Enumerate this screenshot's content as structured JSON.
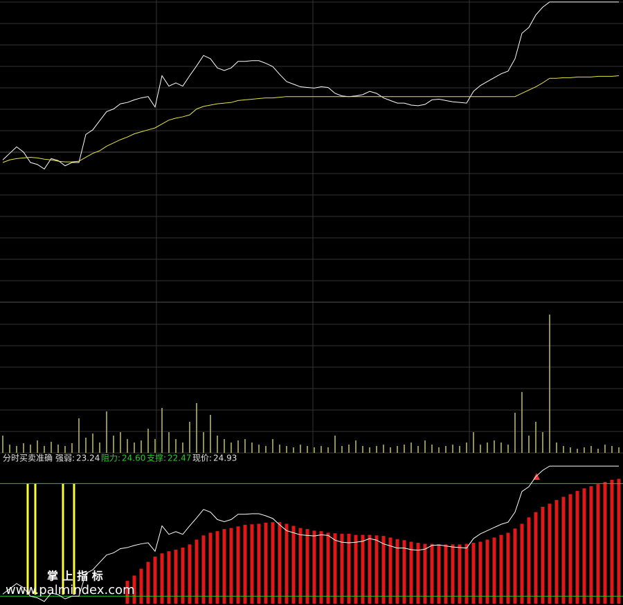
{
  "chart_data": [
    {
      "type": "line",
      "ylim": [
        20.33,
        24.96
      ],
      "series": [
        {
          "color": "#ffffff",
          "values": [
            22.51,
            22.61,
            22.71,
            22.63,
            22.47,
            22.44,
            22.37,
            22.53,
            22.5,
            22.42,
            22.47,
            22.47,
            22.9,
            22.97,
            23.11,
            23.25,
            23.29,
            23.37,
            23.39,
            23.43,
            23.46,
            23.48,
            23.32,
            23.8,
            23.64,
            23.69,
            23.64,
            23.8,
            23.95,
            24.11,
            24.06,
            23.92,
            23.88,
            23.92,
            24.02,
            24.02,
            24.03,
            24.03,
            23.99,
            23.94,
            23.82,
            23.71,
            23.67,
            23.63,
            23.62,
            23.61,
            23.63,
            23.62,
            23.53,
            23.49,
            23.48,
            23.49,
            23.51,
            23.56,
            23.53,
            23.46,
            23.42,
            23.38,
            23.38,
            23.35,
            23.34,
            23.36,
            23.43,
            23.44,
            23.42,
            23.4,
            23.39,
            23.38,
            23.56,
            23.65,
            23.71,
            23.77,
            23.83,
            23.87,
            24.06,
            24.45,
            24.54,
            24.73,
            24.85,
            24.93,
            24.93,
            24.93,
            24.93,
            24.93,
            24.93,
            24.93,
            24.93,
            24.93,
            24.93,
            24.93
          ]
        },
        {
          "color": "#e8e840",
          "values": [
            22.47,
            22.51,
            22.53,
            22.54,
            22.55,
            22.54,
            22.52,
            22.51,
            22.49,
            22.48,
            22.48,
            22.49,
            22.55,
            22.61,
            22.65,
            22.72,
            22.77,
            22.82,
            22.86,
            22.91,
            22.94,
            22.97,
            23.0,
            23.06,
            23.12,
            23.15,
            23.17,
            23.2,
            23.29,
            23.33,
            23.35,
            23.37,
            23.38,
            23.39,
            23.42,
            23.43,
            23.44,
            23.45,
            23.46,
            23.46,
            23.47,
            23.48,
            23.48,
            23.48,
            23.48,
            23.48,
            23.48,
            23.48,
            23.48,
            23.48,
            23.48,
            23.48,
            23.48,
            23.48,
            23.48,
            23.48,
            23.48,
            23.48,
            23.48,
            23.48,
            23.48,
            23.48,
            23.48,
            23.48,
            23.48,
            23.48,
            23.48,
            23.48,
            23.48,
            23.48,
            23.48,
            23.48,
            23.48,
            23.48,
            23.48,
            23.53,
            23.58,
            23.63,
            23.69,
            23.76,
            23.76,
            23.77,
            23.77,
            23.78,
            23.78,
            23.78,
            23.79,
            23.79,
            23.79,
            23.8
          ]
        }
      ]
    },
    {
      "type": "bar",
      "ylim": [
        0,
        215
      ],
      "color": "#c8c83c",
      "values": [
        25,
        12,
        10,
        14,
        12,
        18,
        10,
        16,
        12,
        10,
        14,
        50,
        22,
        28,
        15,
        60,
        25,
        30,
        20,
        15,
        18,
        35,
        20,
        65,
        30,
        20,
        15,
        45,
        72,
        30,
        55,
        25,
        20,
        15,
        18,
        20,
        15,
        12,
        10,
        20,
        12,
        10,
        8,
        12,
        10,
        8,
        10,
        8,
        25,
        10,
        12,
        18,
        10,
        8,
        10,
        12,
        8,
        10,
        12,
        15,
        10,
        18,
        12,
        8,
        10,
        12,
        10,
        15,
        30,
        12,
        15,
        18,
        15,
        12,
        58,
        88,
        25,
        45,
        30,
        200,
        15,
        10,
        8,
        6,
        8,
        10,
        6,
        12,
        10,
        8
      ]
    },
    {
      "type": "bar",
      "title": "分时买卖准确",
      "ylim": [
        22.33,
        25.01
      ],
      "color": "#e01818",
      "indicators": {
        "names": [
          "强弱:",
          "阻力:",
          "支撑:",
          "现价:"
        ],
        "values": [
          23.24,
          24.6,
          22.47,
          24.93
        ],
        "value_labels": [
          "23.24",
          "24.60",
          "22.47",
          "24.93"
        ],
        "colors": [
          "#e0e0e0",
          "#20d020",
          "#20d020",
          "#e0e0e0"
        ]
      },
      "values": [
        null,
        null,
        null,
        null,
        null,
        null,
        null,
        null,
        null,
        null,
        null,
        null,
        null,
        null,
        null,
        null,
        null,
        null,
        22.76,
        22.86,
        22.99,
        23.12,
        23.22,
        23.28,
        23.32,
        23.35,
        23.39,
        23.45,
        23.54,
        23.62,
        23.67,
        23.7,
        23.74,
        23.76,
        23.79,
        23.82,
        23.83,
        23.84,
        23.86,
        23.87,
        23.87,
        23.84,
        23.8,
        23.76,
        23.74,
        23.71,
        23.7,
        23.67,
        23.66,
        23.65,
        23.65,
        23.63,
        23.63,
        23.63,
        23.62,
        23.61,
        23.58,
        23.55,
        23.53,
        23.5,
        23.48,
        23.46,
        23.46,
        23.45,
        23.45,
        23.45,
        23.45,
        23.46,
        23.48,
        23.5,
        23.54,
        23.58,
        23.63,
        23.67,
        23.75,
        23.84,
        23.96,
        24.06,
        24.16,
        24.22,
        24.29,
        24.35,
        24.4,
        24.46,
        24.51,
        24.55,
        24.59,
        24.63,
        24.67,
        24.69
      ],
      "annotations": [
        "掌 上 指 标",
        "www.palmindex.com"
      ]
    }
  ]
}
